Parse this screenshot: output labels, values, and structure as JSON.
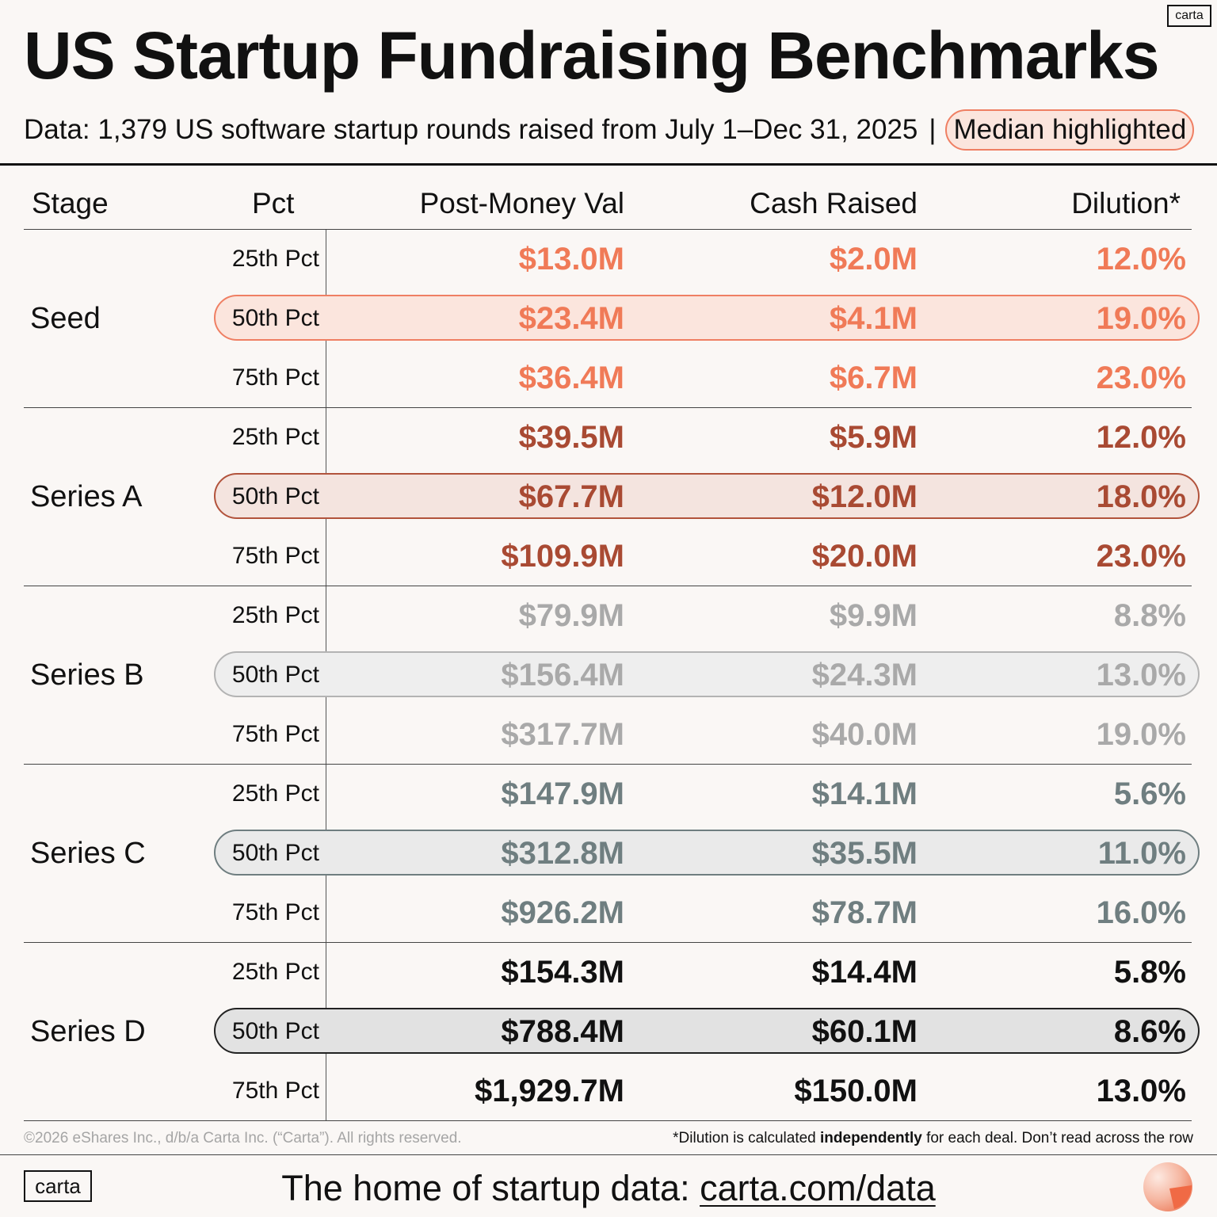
{
  "logo": "carta",
  "title": "US Startup Fundraising Benchmarks",
  "subtitle": {
    "text": "Data: 1,379 US software startup rounds raised from July 1–Dec 31, 2025",
    "separator": "|",
    "highlight_note": "Median highlighted"
  },
  "headers": {
    "stage": "Stage",
    "pct": "Pct",
    "post_money": "Post-Money Val",
    "cash": "Cash Raised",
    "dilution": "Dilution*"
  },
  "chart_data": {
    "type": "table",
    "title": "US Startup Fundraising Benchmarks",
    "columns": [
      "Stage",
      "Pct",
      "Post-Money Val",
      "Cash Raised",
      "Dilution*"
    ],
    "highlight_row": "50th Pct",
    "colors": {
      "Seed": "#f07a57",
      "Series A": "#a94a33",
      "Series B": "#a9a9a9",
      "Series C": "#6f7e80",
      "Series D": "#111111"
    },
    "pill_styles": {
      "Seed": {
        "border": "#ef7f63",
        "fill": "#fbe5dd"
      },
      "Series A": {
        "border": "#b2533c",
        "fill": "#f4e4df"
      },
      "Series B": {
        "border": "#b3b3b3",
        "fill": "#eeeeee"
      },
      "Series C": {
        "border": "#6f7e80",
        "fill": "#eaeaea"
      },
      "Series D": {
        "border": "#222222",
        "fill": "#e2e2e2"
      }
    },
    "stages": [
      {
        "name": "Seed",
        "rows": [
          {
            "pct": "25th Pct",
            "post_money": "$13.0M",
            "cash": "$2.0M",
            "dilution": "12.0%"
          },
          {
            "pct": "50th Pct",
            "post_money": "$23.4M",
            "cash": "$4.1M",
            "dilution": "19.0%"
          },
          {
            "pct": "75th Pct",
            "post_money": "$36.4M",
            "cash": "$6.7M",
            "dilution": "23.0%"
          }
        ]
      },
      {
        "name": "Series A",
        "rows": [
          {
            "pct": "25th Pct",
            "post_money": "$39.5M",
            "cash": "$5.9M",
            "dilution": "12.0%"
          },
          {
            "pct": "50th Pct",
            "post_money": "$67.7M",
            "cash": "$12.0M",
            "dilution": "18.0%"
          },
          {
            "pct": "75th Pct",
            "post_money": "$109.9M",
            "cash": "$20.0M",
            "dilution": "23.0%"
          }
        ]
      },
      {
        "name": "Series B",
        "rows": [
          {
            "pct": "25th Pct",
            "post_money": "$79.9M",
            "cash": "$9.9M",
            "dilution": "8.8%"
          },
          {
            "pct": "50th Pct",
            "post_money": "$156.4M",
            "cash": "$24.3M",
            "dilution": "13.0%"
          },
          {
            "pct": "75th Pct",
            "post_money": "$317.7M",
            "cash": "$40.0M",
            "dilution": "19.0%"
          }
        ]
      },
      {
        "name": "Series C",
        "rows": [
          {
            "pct": "25th Pct",
            "post_money": "$147.9M",
            "cash": "$14.1M",
            "dilution": "5.6%"
          },
          {
            "pct": "50th Pct",
            "post_money": "$312.8M",
            "cash": "$35.5M",
            "dilution": "11.0%"
          },
          {
            "pct": "75th Pct",
            "post_money": "$926.2M",
            "cash": "$78.7M",
            "dilution": "16.0%"
          }
        ]
      },
      {
        "name": "Series D",
        "rows": [
          {
            "pct": "25th Pct",
            "post_money": "$154.3M",
            "cash": "$14.4M",
            "dilution": "5.8%"
          },
          {
            "pct": "50th Pct",
            "post_money": "$788.4M",
            "cash": "$60.1M",
            "dilution": "8.6%"
          },
          {
            "pct": "75th Pct",
            "post_money": "$1,929.7M",
            "cash": "$150.0M",
            "dilution": "13.0%"
          }
        ]
      }
    ]
  },
  "footer": {
    "copyright": "©2026 eShares Inc., d/b/a Carta Inc. (“Carta”). All rights reserved.",
    "note_pre": "*Dilution is calculated ",
    "note_bold": "independently",
    "note_post": " for each deal. Don’t read across the row",
    "logo": "carta",
    "tagline_pre": "The home of startup data: ",
    "tagline_link": "carta.com/data"
  }
}
